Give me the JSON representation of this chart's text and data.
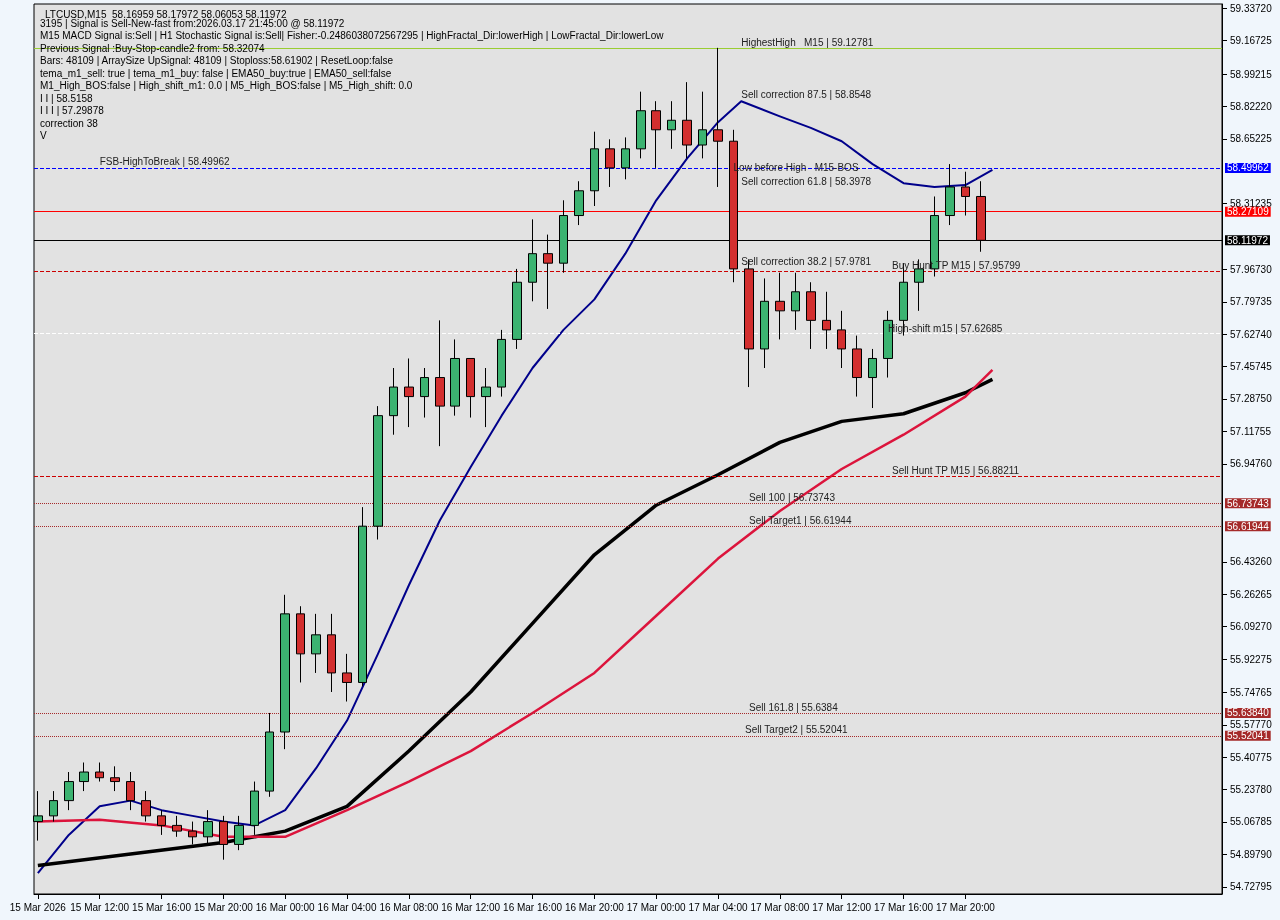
{
  "chart_data": {
    "type": "candlestick",
    "title": "LTCUSD,M15  58.16959 58.17972 58.06053 58.11972",
    "annotations": [
      "3195 | Signal is Sell-New-fast from:2026.03.17 21:45:00 @ 58.11972",
      "M15 MACD Signal is:Sell | H1 Stochastic Signal is:Sell| Fisher:-0.2486038072567295 | HighFractal_Dir:lowerHigh | LowFractal_Dir:lowerLow",
      "Previous Signal :Buy-Stop-candle2 from: 58.32074",
      "Bars: 48109 | ArraySize UpSignal: 48109 | Stoploss:58.61902 | ResetLoop:false",
      "tema_m1_sell: true | tema_m1_buy: false | EMA50_buy:true | EMA50_sell:false",
      "M1_High_BOS:false | High_shift_m1: 0.0 | M5_High_BOS:false | M5_High_shift: 0.0",
      {
        "text": "FSB-HighToBreak | 58.49962",
        "x": "2026-03-15T12:00",
        "y": 58.49962
      },
      {
        "text": "HighestHigh   M15 | 59.12781",
        "x": "2026-03-17T05:30",
        "y": 59.12781
      },
      {
        "text": "Sell correction 87.5 | 58.8548",
        "x": "2026-03-17T05:30",
        "y": 58.8548
      },
      "I I | 58.5158",
      {
        "text": "Low before High   M15-BOS",
        "x": "2026-03-17T05:00",
        "y": 58.47
      },
      {
        "text": "Sell correction 61.8 | 58.3978",
        "x": "2026-03-17T05:30",
        "y": 58.3978
      },
      {
        "text": "Sell correction 38.2 | 57.9781",
        "x": "2026-03-17T05:30",
        "y": 57.9781
      },
      {
        "text": "Buy Hunt TP M15 | 57.95799",
        "x": "2026-03-17T15:15",
        "y": 57.95799
      },
      {
        "text": "High-shift m15 | 57.62685",
        "x": "2026-03-17T15:00",
        "y": 57.62685
      },
      "I I I | 57.29878",
      {
        "text": "Sell Hunt TP M15 | 56.88211",
        "x": "2026-03-17T15:15",
        "y": 56.88211
      },
      {
        "text": "Sell 100 | 56.73743",
        "x": "2026-03-17T06:00",
        "y": 56.73743
      },
      {
        "text": "Sell Target1 | 56.61944",
        "x": "2026-03-17T06:00",
        "y": 56.61944
      },
      "correction 38",
      {
        "text": "Sell 161.8 | 55.6384",
        "x": "2026-03-17T06:00",
        "y": 55.6384
      },
      {
        "text": "Sell Target2 | 55.52041",
        "x": "2026-03-17T05:45",
        "y": 55.52041
      },
      "V"
    ],
    "x": [
      "2026-03-15T08:00",
      "2026-03-15T09:00",
      "2026-03-15T10:00",
      "2026-03-15T11:00",
      "2026-03-15T12:00",
      "2026-03-15T13:00",
      "2026-03-15T14:00",
      "2026-03-15T15:00",
      "2026-03-15T16:00",
      "2026-03-15T17:00",
      "2026-03-15T18:00",
      "2026-03-15T19:00",
      "2026-03-15T20:00",
      "2026-03-15T21:00",
      "2026-03-15T22:00",
      "2026-03-15T23:00",
      "2026-03-16T00:00",
      "2026-03-16T01:00",
      "2026-03-16T02:00",
      "2026-03-16T03:00",
      "2026-03-16T04:00",
      "2026-03-16T05:00",
      "2026-03-16T06:00",
      "2026-03-16T07:00",
      "2026-03-16T08:00",
      "2026-03-16T09:00",
      "2026-03-16T10:00",
      "2026-03-16T11:00",
      "2026-03-16T12:00",
      "2026-03-16T13:00",
      "2026-03-16T14:00",
      "2026-03-16T15:00",
      "2026-03-16T16:00",
      "2026-03-16T17:00",
      "2026-03-16T18:00",
      "2026-03-16T19:00",
      "2026-03-16T20:00",
      "2026-03-16T21:00",
      "2026-03-16T22:00",
      "2026-03-16T23:00",
      "2026-03-17T00:00",
      "2026-03-17T01:00",
      "2026-03-17T02:00",
      "2026-03-17T03:00",
      "2026-03-17T04:00",
      "2026-03-17T05:00",
      "2026-03-17T06:00",
      "2026-03-17T07:00",
      "2026-03-17T08:00",
      "2026-03-17T09:00",
      "2026-03-17T10:00",
      "2026-03-17T11:00",
      "2026-03-17T12:00",
      "2026-03-17T13:00",
      "2026-03-17T14:00",
      "2026-03-17T15:00",
      "2026-03-17T16:00",
      "2026-03-17T17:00",
      "2026-03-17T18:00",
      "2026-03-17T19:00",
      "2026-03-17T20:00",
      "2026-03-17T21:00"
    ],
    "ohlc": [
      [
        55.07,
        55.23,
        54.97,
        55.1
      ],
      [
        55.1,
        55.23,
        55.07,
        55.18
      ],
      [
        55.18,
        55.33,
        55.13,
        55.28
      ],
      [
        55.28,
        55.38,
        55.23,
        55.33
      ],
      [
        55.33,
        55.38,
        55.28,
        55.3
      ],
      [
        55.3,
        55.36,
        55.23,
        55.28
      ],
      [
        55.28,
        55.33,
        55.13,
        55.18
      ],
      [
        55.18,
        55.23,
        55.07,
        55.1
      ],
      [
        55.1,
        55.13,
        55.0,
        55.05
      ],
      [
        55.05,
        55.1,
        54.99,
        55.02
      ],
      [
        55.02,
        55.07,
        54.95,
        54.99
      ],
      [
        54.99,
        55.13,
        54.95,
        55.07
      ],
      [
        55.07,
        55.1,
        54.87,
        54.95
      ],
      [
        54.95,
        55.1,
        54.92,
        55.05
      ],
      [
        55.05,
        55.28,
        55.0,
        55.23
      ],
      [
        55.23,
        55.64,
        55.2,
        55.54
      ],
      [
        55.54,
        56.26,
        55.45,
        56.16
      ],
      [
        56.16,
        56.2,
        55.8,
        55.95
      ],
      [
        55.95,
        56.16,
        55.85,
        56.05
      ],
      [
        56.05,
        56.16,
        55.75,
        55.85
      ],
      [
        55.85,
        55.95,
        55.7,
        55.8
      ],
      [
        55.8,
        56.72,
        55.78,
        56.62
      ],
      [
        56.62,
        57.25,
        56.55,
        57.2
      ],
      [
        57.2,
        57.45,
        57.1,
        57.35
      ],
      [
        57.35,
        57.5,
        57.14,
        57.3
      ],
      [
        57.3,
        57.45,
        57.19,
        57.4
      ],
      [
        57.4,
        57.7,
        57.04,
        57.25
      ],
      [
        57.25,
        57.6,
        57.2,
        57.5
      ],
      [
        57.5,
        57.5,
        57.19,
        57.3
      ],
      [
        57.3,
        57.45,
        57.14,
        57.35
      ],
      [
        57.35,
        57.65,
        57.3,
        57.6
      ],
      [
        57.6,
        57.97,
        57.55,
        57.9
      ],
      [
        57.9,
        58.23,
        57.8,
        58.05
      ],
      [
        58.05,
        58.15,
        57.76,
        58.0
      ],
      [
        58.0,
        58.33,
        57.95,
        58.25
      ],
      [
        58.25,
        58.43,
        58.2,
        58.38
      ],
      [
        58.38,
        58.69,
        58.3,
        58.6
      ],
      [
        58.6,
        58.65,
        58.4,
        58.5
      ],
      [
        58.5,
        58.66,
        58.44,
        58.6
      ],
      [
        58.6,
        58.9,
        58.55,
        58.8
      ],
      [
        58.8,
        58.85,
        58.5,
        58.7
      ],
      [
        58.7,
        58.85,
        58.6,
        58.75
      ],
      [
        58.75,
        58.95,
        58.55,
        58.62
      ],
      [
        58.62,
        58.9,
        58.55,
        58.7
      ],
      [
        58.7,
        59.13,
        58.4,
        58.64
      ],
      [
        58.64,
        58.7,
        57.9,
        57.97
      ],
      [
        57.97,
        58.02,
        57.35,
        57.55
      ],
      [
        57.55,
        57.92,
        57.45,
        57.8
      ],
      [
        57.8,
        57.95,
        57.6,
        57.75
      ],
      [
        57.75,
        57.95,
        57.65,
        57.85
      ],
      [
        57.85,
        57.9,
        57.55,
        57.7
      ],
      [
        57.7,
        57.85,
        57.55,
        57.65
      ],
      [
        57.65,
        57.75,
        57.45,
        57.55
      ],
      [
        57.55,
        57.62,
        57.3,
        57.4
      ],
      [
        57.4,
        57.55,
        57.24,
        57.5
      ],
      [
        57.5,
        57.75,
        57.4,
        57.7
      ],
      [
        57.7,
        58.0,
        57.62,
        57.9
      ],
      [
        57.9,
        58.02,
        57.75,
        57.97
      ],
      [
        57.97,
        58.35,
        57.93,
        58.25
      ],
      [
        58.25,
        58.52,
        58.2,
        58.4
      ],
      [
        58.4,
        58.48,
        58.25,
        58.35
      ],
      [
        58.35,
        58.43,
        58.06,
        58.12
      ]
    ],
    "colors": [
      "#3cb371",
      "#3cb371",
      "#3cb371",
      "#3cb371",
      "#d32f2f",
      "#d32f2f",
      "#d32f2f",
      "#d32f2f",
      "#d32f2f",
      "#d32f2f",
      "#d32f2f",
      "#3cb371",
      "#d32f2f",
      "#3cb371",
      "#3cb371",
      "#3cb371",
      "#3cb371",
      "#d32f2f",
      "#3cb371",
      "#d32f2f",
      "#d32f2f",
      "#3cb371",
      "#3cb371",
      "#3cb371",
      "#d32f2f",
      "#3cb371",
      "#d32f2f",
      "#3cb371",
      "#d32f2f",
      "#3cb371",
      "#3cb371",
      "#3cb371",
      "#3cb371",
      "#d32f2f",
      "#3cb371",
      "#3cb371",
      "#3cb371",
      "#d32f2f",
      "#3cb371",
      "#3cb371",
      "#d32f2f",
      "#3cb371",
      "#d32f2f",
      "#3cb371",
      "#d32f2f",
      "#d32f2f",
      "#d32f2f",
      "#3cb371",
      "#d32f2f",
      "#3cb371",
      "#d32f2f",
      "#d32f2f",
      "#d32f2f",
      "#d32f2f",
      "#3cb371",
      "#3cb371",
      "#3cb371",
      "#3cb371",
      "#3cb371",
      "#3cb371",
      "#d32f2f",
      "#d32f2f"
    ],
    "series": [
      {
        "type": "line",
        "color": "#00008b",
        "x": [
          "2026-03-15T08:00",
          "2026-03-15T10:00",
          "2026-03-15T12:00",
          "2026-03-15T14:00",
          "2026-03-15T16:00",
          "2026-03-15T18:00",
          "2026-03-15T20:00",
          "2026-03-15T22:00",
          "2026-03-16T00:00",
          "2026-03-16T02:00",
          "2026-03-16T04:00",
          "2026-03-16T06:00",
          "2026-03-16T08:00",
          "2026-03-16T10:00",
          "2026-03-16T12:00",
          "2026-03-16T14:00",
          "2026-03-16T16:00",
          "2026-03-16T18:00",
          "2026-03-16T20:00",
          "2026-03-16T22:00",
          "2026-03-17T00:00",
          "2026-03-17T02:00",
          "2026-03-17T04:00",
          "2026-03-17T05:30",
          "2026-03-17T08:00",
          "2026-03-17T10:00",
          "2026-03-17T12:00",
          "2026-03-17T14:00",
          "2026-03-17T16:00",
          "2026-03-17T18:00",
          "2026-03-17T20:00",
          "2026-03-17T21:45"
        ],
        "values": [
          54.8,
          55.0,
          55.15,
          55.18,
          55.13,
          55.1,
          55.07,
          55.05,
          55.13,
          55.35,
          55.6,
          55.95,
          56.31,
          56.65,
          56.93,
          57.2,
          57.45,
          57.65,
          57.81,
          58.05,
          58.33,
          58.55,
          58.74,
          58.85,
          58.77,
          58.71,
          58.64,
          58.52,
          58.42,
          58.4,
          58.41,
          58.49
        ]
      },
      {
        "type": "line",
        "color": "#000000",
        "x": [
          "2026-03-15T08:00",
          "2026-03-15T14:00",
          "2026-03-15T20:00",
          "2026-03-16T00:00",
          "2026-03-16T04:00",
          "2026-03-16T08:00",
          "2026-03-16T12:00",
          "2026-03-16T16:00",
          "2026-03-16T20:00",
          "2026-03-17T00:00",
          "2026-03-17T04:00",
          "2026-03-17T08:00",
          "2026-03-17T12:00",
          "2026-03-17T16:00",
          "2026-03-17T20:00",
          "2026-03-17T21:45"
        ],
        "values": [
          54.84,
          54.9,
          54.96,
          55.02,
          55.15,
          55.44,
          55.75,
          56.11,
          56.47,
          56.73,
          56.89,
          57.06,
          57.17,
          57.21,
          57.32,
          57.39
        ]
      },
      {
        "type": "line",
        "color": "#dc143c",
        "x": [
          "2026-03-15T08:00",
          "2026-03-15T12:00",
          "2026-03-15T16:00",
          "2026-03-15T20:00",
          "2026-03-16T00:00",
          "2026-03-16T04:00",
          "2026-03-16T08:00",
          "2026-03-16T12:00",
          "2026-03-16T16:00",
          "2026-03-16T20:00",
          "2026-03-17T00:00",
          "2026-03-17T04:00",
          "2026-03-17T08:00",
          "2026-03-17T12:00",
          "2026-03-17T16:00",
          "2026-03-17T20:00",
          "2026-03-17T21:45"
        ],
        "values": [
          55.07,
          55.08,
          55.05,
          54.99,
          54.99,
          55.13,
          55.28,
          55.44,
          55.64,
          55.85,
          56.15,
          56.45,
          56.7,
          56.92,
          57.1,
          57.3,
          57.44
        ]
      }
    ],
    "ref_lines": [
      {
        "axis": "y",
        "value": 59.12781,
        "color": "#9acd32",
        "line_style": "solid"
      },
      {
        "axis": "y",
        "value": 58.49962,
        "label": "58.49962",
        "color": "#0000ff",
        "line_style": "dashed"
      },
      {
        "axis": "y",
        "value": 58.27109,
        "label": "58.27109",
        "color": "#ff0000",
        "line_style": "solid"
      },
      {
        "axis": "y",
        "value": 58.11972,
        "label": "58.11972",
        "color": "#000000",
        "line_style": "solid"
      },
      {
        "axis": "y",
        "value": 57.95799,
        "color": "#cc0000",
        "line_style": "dashed"
      },
      {
        "axis": "y",
        "value": 57.62685,
        "color": "#ffffff",
        "line_style": "dashed"
      },
      {
        "axis": "y",
        "value": 56.88211,
        "color": "#cc0000",
        "line_style": "dashed"
      },
      {
        "axis": "y",
        "value": 56.73743,
        "label": "56.73743",
        "color": "#a52a2a",
        "line_style": "dotted"
      },
      {
        "axis": "y",
        "value": 56.61944,
        "label": "56.61944",
        "color": "#a52a2a",
        "line_style": "dotted"
      },
      {
        "axis": "y",
        "value": 55.6384,
        "label": "55.63840",
        "color": "#a52a2a",
        "line_style": "dotted"
      },
      {
        "axis": "y",
        "value": 55.52041,
        "label": "55.52041",
        "color": "#a52a2a",
        "line_style": "dotted"
      }
    ],
    "xlim": [
      "2026-03-15T07:45",
      "2026-03-18T12:36"
    ],
    "xticks": [
      {
        "value": "2026-03-15T08:00",
        "label": "15 Mar 2026"
      },
      {
        "value": "2026-03-15T12:00",
        "label": "15 Mar 12:00"
      },
      {
        "value": "2026-03-15T16:00",
        "label": "15 Mar 16:00"
      },
      {
        "value": "2026-03-15T20:00",
        "label": "15 Mar 20:00"
      },
      {
        "value": "2026-03-16T00:00",
        "label": "16 Mar 00:00"
      },
      {
        "value": "2026-03-16T04:00",
        "label": "16 Mar 04:00"
      },
      {
        "value": "2026-03-16T08:00",
        "label": "16 Mar 08:00"
      },
      {
        "value": "2026-03-16T12:00",
        "label": "16 Mar 12:00"
      },
      {
        "value": "2026-03-16T16:00",
        "label": "16 Mar 16:00"
      },
      {
        "value": "2026-03-16T20:00",
        "label": "16 Mar 20:00"
      },
      {
        "value": "2026-03-17T00:00",
        "label": "17 Mar 00:00"
      },
      {
        "value": "2026-03-17T04:00",
        "label": "17 Mar 04:00"
      },
      {
        "value": "2026-03-17T08:00",
        "label": "17 Mar 08:00"
      },
      {
        "value": "2026-03-17T12:00",
        "label": "17 Mar 12:00"
      },
      {
        "value": "2026-03-17T16:00",
        "label": "17 Mar 16:00"
      },
      {
        "value": "2026-03-17T20:00",
        "label": "17 Mar 20:00"
      }
    ],
    "ylim": [
      54.69,
      59.36
    ],
    "yticks": [
      {
        "value": 59.3372,
        "label": "59.33720"
      },
      59.16725,
      58.99215,
      {
        "value": 58.8222,
        "label": "58.82220"
      },
      58.65225,
      58.31235,
      {
        "value": 57.9673,
        "label": "57.96730"
      },
      57.79735,
      {
        "value": 57.6274,
        "label": "57.62740"
      },
      57.45745,
      {
        "value": 57.2875,
        "label": "57.28750"
      },
      57.11755,
      {
        "value": 56.9476,
        "label": "56.94760"
      },
      {
        "value": 56.4326,
        "label": "56.43260"
      },
      56.26265,
      {
        "value": 56.0927,
        "label": "56.09270"
      },
      55.92275,
      55.74765,
      {
        "value": 55.5777,
        "label": "55.57770"
      },
      55.40775,
      {
        "value": 55.2378,
        "label": "55.23780"
      },
      55.06785,
      {
        "value": 54.8979,
        "label": "54.89790"
      },
      54.72795
    ]
  }
}
